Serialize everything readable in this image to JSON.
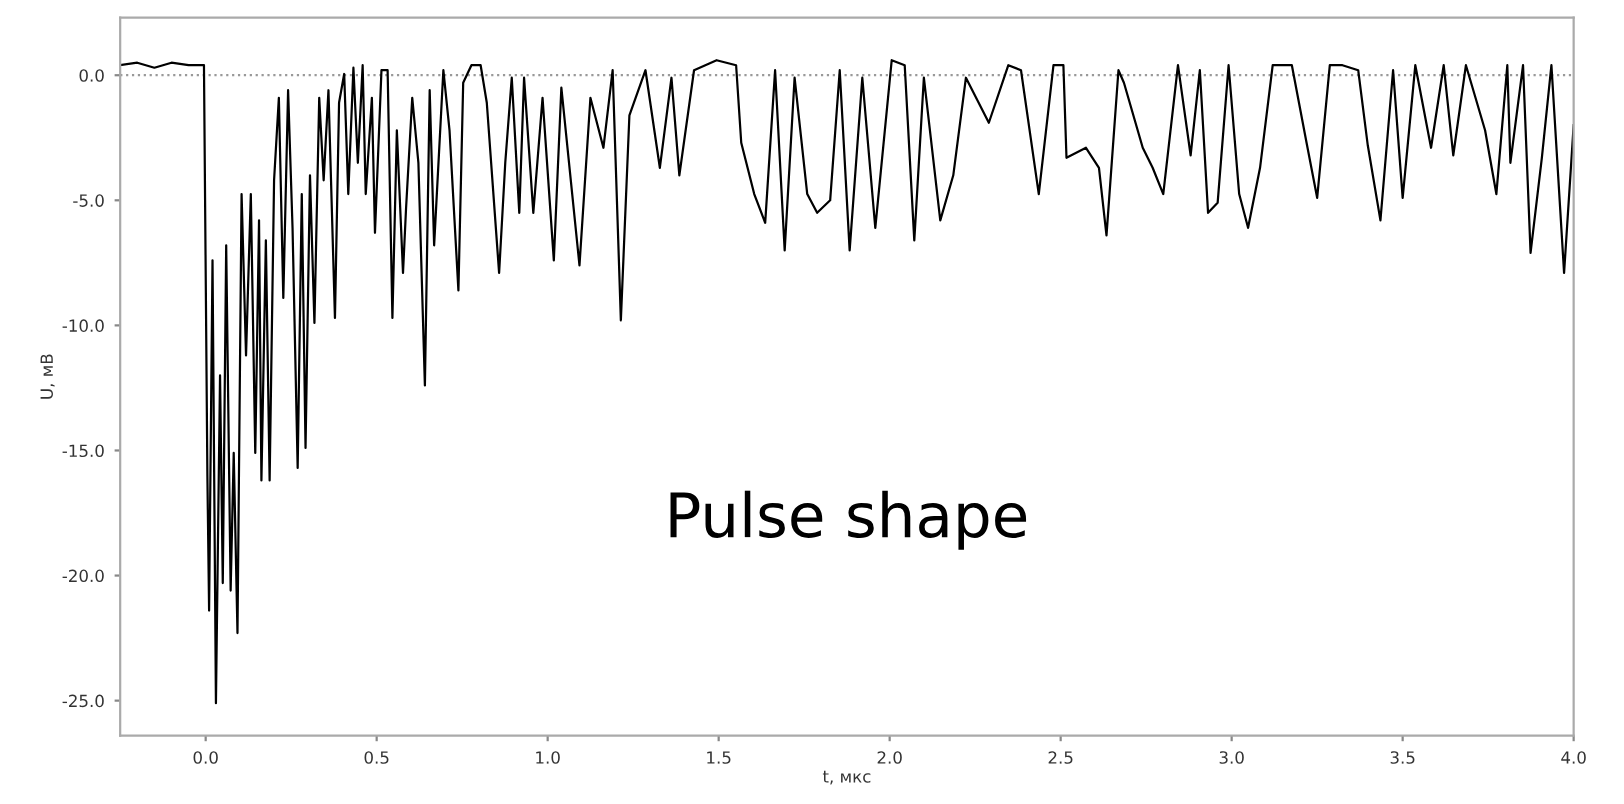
{
  "chart_data": {
    "type": "line",
    "xlabel": "t, мкс",
    "ylabel": "U, мВ",
    "annotations": [
      "Pulse shape"
    ],
    "xlim": [
      -0.25,
      4.0
    ],
    "ylim": [
      -26.4,
      2.3
    ],
    "xticks": [
      {
        "value": 0,
        "label": "0.0"
      },
      {
        "value": 0.5,
        "label": "0.5"
      },
      {
        "value": 1,
        "label": "1.0"
      },
      {
        "value": 1.5,
        "label": "1.5"
      },
      {
        "value": 2,
        "label": "2.0"
      },
      {
        "value": 2.5,
        "label": "2.5"
      },
      {
        "value": 3,
        "label": "3.0"
      },
      {
        "value": 3.5,
        "label": "3.5"
      },
      {
        "value": 4,
        "label": "4.0"
      }
    ],
    "yticks": [
      {
        "value": 0,
        "label": "0.0"
      },
      {
        "value": -5,
        "label": "-5.0"
      },
      {
        "value": -10,
        "label": "-10.0"
      },
      {
        "value": -15,
        "label": "-15.0"
      },
      {
        "value": -20,
        "label": "-20.0"
      },
      {
        "value": -25,
        "label": "-25.0"
      }
    ],
    "grid": false,
    "legend": false,
    "marker": "none",
    "line_style": "solid",
    "ref_lines": [
      {
        "axis": "y",
        "value": 0,
        "color": "#999999",
        "line_style": "dotted"
      }
    ],
    "series": [
      {
        "color": "#000000",
        "x": [
          -0.25,
          -0.2,
          -0.15,
          -0.1,
          -0.05,
          -0.005,
          0.005,
          0.01,
          0.02,
          0.03,
          0.042,
          0.05,
          0.06,
          0.073,
          0.082,
          0.093,
          0.105,
          0.118,
          0.132,
          0.145,
          0.156,
          0.163,
          0.176,
          0.187,
          0.2,
          0.214,
          0.227,
          0.241,
          0.254,
          0.269,
          0.281,
          0.292,
          0.305,
          0.318,
          0.332,
          0.345,
          0.359,
          0.378,
          0.39,
          0.405,
          0.417,
          0.432,
          0.445,
          0.459,
          0.468,
          0.486,
          0.495,
          0.514,
          0.532,
          0.546,
          0.559,
          0.577,
          0.586,
          0.604,
          0.622,
          0.641,
          0.655,
          0.668,
          0.695,
          0.713,
          0.739,
          0.753,
          0.777,
          0.804,
          0.822,
          0.858,
          0.876,
          0.895,
          0.917,
          0.931,
          0.958,
          0.985,
          1.018,
          1.04,
          1.093,
          1.125,
          1.163,
          1.19,
          1.214,
          1.239,
          1.286,
          1.328,
          1.362,
          1.385,
          1.428,
          1.494,
          1.551,
          1.566,
          1.604,
          1.636,
          1.665,
          1.693,
          1.722,
          1.759,
          1.788,
          1.826,
          1.854,
          1.883,
          1.92,
          1.958,
          2.006,
          2.044,
          2.072,
          2.1,
          2.148,
          2.186,
          2.223,
          2.29,
          2.347,
          2.384,
          2.436,
          2.479,
          2.508,
          2.517,
          2.574,
          2.612,
          2.634,
          2.669,
          2.685,
          2.74,
          2.769,
          2.8,
          2.843,
          2.88,
          2.907,
          2.931,
          2.959,
          2.991,
          3.022,
          3.048,
          3.083,
          3.12,
          3.176,
          3.219,
          3.25,
          3.287,
          3.324,
          3.37,
          3.398,
          3.435,
          3.472,
          3.5,
          3.537,
          3.583,
          3.62,
          3.648,
          3.685,
          3.741,
          3.774,
          3.806,
          3.815,
          3.852,
          3.874,
          3.907,
          3.935,
          3.972,
          4.0
        ],
        "values": [
          0.4,
          0.5,
          0.3,
          0.5,
          0.4,
          0.4,
          -16.0,
          -21.4,
          -7.4,
          -25.1,
          -12.0,
          -20.3,
          -6.8,
          -20.6,
          -15.1,
          -22.3,
          -4.75,
          -11.2,
          -4.75,
          -15.1,
          -5.8,
          -16.2,
          -6.6,
          -16.2,
          -4.2,
          -0.9,
          -8.9,
          -0.6,
          -6.1,
          -15.7,
          -4.75,
          -14.9,
          -4.0,
          -9.9,
          -0.9,
          -4.2,
          -0.6,
          -9.7,
          -1.1,
          0.05,
          -4.75,
          0.3,
          -3.5,
          0.4,
          -4.75,
          -0.9,
          -6.3,
          0.2,
          0.2,
          -9.7,
          -2.2,
          -7.9,
          -5.3,
          -0.9,
          -3.5,
          -12.4,
          -0.6,
          -6.8,
          0.2,
          -2.2,
          -8.6,
          -0.3,
          0.4,
          0.4,
          -1.1,
          -7.9,
          -3.5,
          -0.1,
          -5.5,
          -0.1,
          -5.5,
          -0.9,
          -7.4,
          -0.5,
          -7.6,
          -0.9,
          -2.9,
          0.2,
          -9.8,
          -1.6,
          0.2,
          -3.7,
          -0.1,
          -4.0,
          0.2,
          0.6,
          0.4,
          -2.7,
          -4.75,
          -5.9,
          0.2,
          -7.0,
          -0.1,
          -4.75,
          -5.5,
          -5.0,
          0.2,
          -7.0,
          -0.1,
          -6.1,
          0.6,
          0.4,
          -6.6,
          -0.1,
          -5.8,
          -4.0,
          -0.1,
          -1.9,
          0.4,
          0.2,
          -4.75,
          0.4,
          0.4,
          -3.3,
          -2.9,
          -3.7,
          -6.4,
          0.2,
          -0.3,
          -2.9,
          -3.7,
          -4.75,
          0.4,
          -3.2,
          0.2,
          -5.5,
          -5.1,
          0.4,
          -4.75,
          -6.1,
          -3.7,
          0.4,
          0.4,
          -2.7,
          -4.9,
          0.4,
          0.4,
          0.2,
          -2.8,
          -5.8,
          0.2,
          -4.9,
          0.4,
          -2.9,
          0.4,
          -3.2,
          0.4,
          -2.2,
          -4.75,
          0.4,
          -3.5,
          0.4,
          -7.1,
          -3.3,
          0.4,
          -7.9,
          -2.0
        ]
      }
    ]
  }
}
